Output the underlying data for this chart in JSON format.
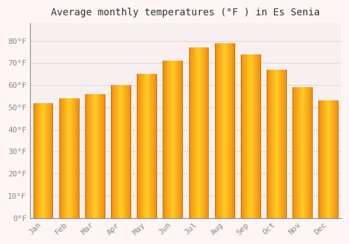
{
  "title": "Average monthly temperatures (°F ) in Es Senia",
  "months": [
    "Jan",
    "Feb",
    "Mar",
    "Apr",
    "May",
    "Jun",
    "Jul",
    "Aug",
    "Sep",
    "Oct",
    "Nov",
    "Dec"
  ],
  "values": [
    52,
    54,
    56,
    60,
    65,
    71,
    77,
    79,
    74,
    67,
    59,
    53
  ],
  "bar_color_main": "#FFA500",
  "bar_color_light": "#FFD040",
  "bar_color_dark": "#E08000",
  "ylim": [
    0,
    88
  ],
  "yticks": [
    0,
    10,
    20,
    30,
    40,
    50,
    60,
    70,
    80
  ],
  "ytick_labels": [
    "0°F",
    "10°F",
    "20°F",
    "30°F",
    "40°F",
    "50°F",
    "60°F",
    "70°F",
    "80°F"
  ],
  "background_color": "#FFF5F5",
  "plot_bg_color": "#F8F0F0",
  "grid_color": "#E0D8D8",
  "title_fontsize": 10,
  "tick_fontsize": 8,
  "tick_color": "#888888",
  "font_family": "monospace"
}
